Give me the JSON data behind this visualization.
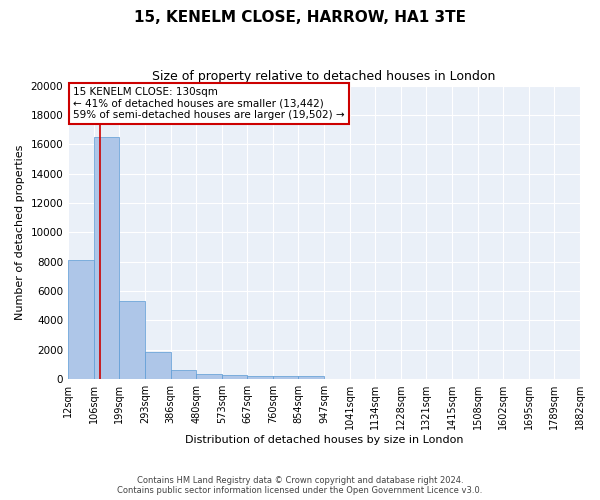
{
  "title": "15, KENELM CLOSE, HARROW, HA1 3TE",
  "subtitle": "Size of property relative to detached houses in London",
  "xlabel": "Distribution of detached houses by size in London",
  "ylabel": "Number of detached properties",
  "bar_color": "#aec6e8",
  "bar_edge_color": "#5b9bd5",
  "background_color": "#eaf0f8",
  "grid_color": "#ffffff",
  "annotation_box_color": "#cc0000",
  "annotation_line_color": "#cc0000",
  "footer_line1": "Contains HM Land Registry data © Crown copyright and database right 2024.",
  "footer_line2": "Contains public sector information licensed under the Open Government Licence v3.0.",
  "annotation_title": "15 KENELM CLOSE: 130sqm",
  "annotation_line2": "← 41% of detached houses are smaller (13,442)",
  "annotation_line3": "59% of semi-detached houses are larger (19,502) →",
  "property_bin_index": 1,
  "bin_counts": [
    8100,
    16500,
    5300,
    1850,
    650,
    350,
    270,
    210,
    180,
    200,
    0,
    0,
    0,
    0,
    0,
    0,
    0,
    0,
    0,
    0
  ],
  "ylim": [
    0,
    20000
  ],
  "yticks": [
    0,
    2000,
    4000,
    6000,
    8000,
    10000,
    12000,
    14000,
    16000,
    18000,
    20000
  ],
  "tick_labels": [
    "12sqm",
    "106sqm",
    "199sqm",
    "293sqm",
    "386sqm",
    "480sqm",
    "573sqm",
    "667sqm",
    "760sqm",
    "854sqm",
    "947sqm",
    "1041sqm",
    "1134sqm",
    "1228sqm",
    "1321sqm",
    "1415sqm",
    "1508sqm",
    "1602sqm",
    "1695sqm",
    "1789sqm",
    "1882sqm"
  ],
  "title_fontsize": 11,
  "subtitle_fontsize": 9,
  "ylabel_fontsize": 8,
  "xlabel_fontsize": 8,
  "tick_fontsize": 7,
  "ytick_fontsize": 7.5
}
